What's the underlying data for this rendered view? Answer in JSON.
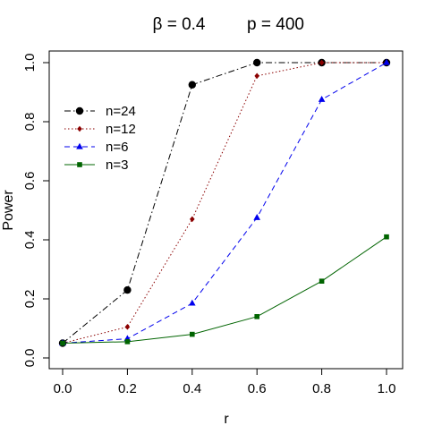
{
  "chart_data": {
    "type": "line",
    "title_left": "β = 0.4",
    "title_right": "p = 400",
    "xlabel": "r",
    "ylabel": "Power",
    "xlim": [
      0,
      1
    ],
    "ylim": [
      0,
      1
    ],
    "x_ticks": [
      "0.0",
      "0.2",
      "0.4",
      "0.6",
      "0.8",
      "1.0"
    ],
    "y_ticks": [
      "0.0",
      "0.2",
      "0.4",
      "0.6",
      "0.8",
      "1.0"
    ],
    "x": [
      0.0,
      0.2,
      0.4,
      0.6,
      0.8,
      1.0
    ],
    "legend_position": "top-left",
    "grid": false,
    "series": [
      {
        "name": "n=24",
        "values": [
          0.05,
          0.23,
          0.925,
          1.0,
          1.0,
          1.0
        ],
        "color": "#000000",
        "dash": "dashdot",
        "marker": "circle"
      },
      {
        "name": "n=12",
        "values": [
          0.05,
          0.105,
          0.47,
          0.955,
          1.0,
          1.0
        ],
        "color": "#8b0000",
        "dash": "dotted",
        "marker": "diamond"
      },
      {
        "name": "n=6",
        "values": [
          0.05,
          0.065,
          0.185,
          0.475,
          0.875,
          1.0
        ],
        "color": "#0000ee",
        "dash": "dashed",
        "marker": "triangle"
      },
      {
        "name": "n=3",
        "values": [
          0.05,
          0.055,
          0.08,
          0.14,
          0.26,
          0.41
        ],
        "color": "#006400",
        "dash": "solid",
        "marker": "square"
      }
    ]
  }
}
